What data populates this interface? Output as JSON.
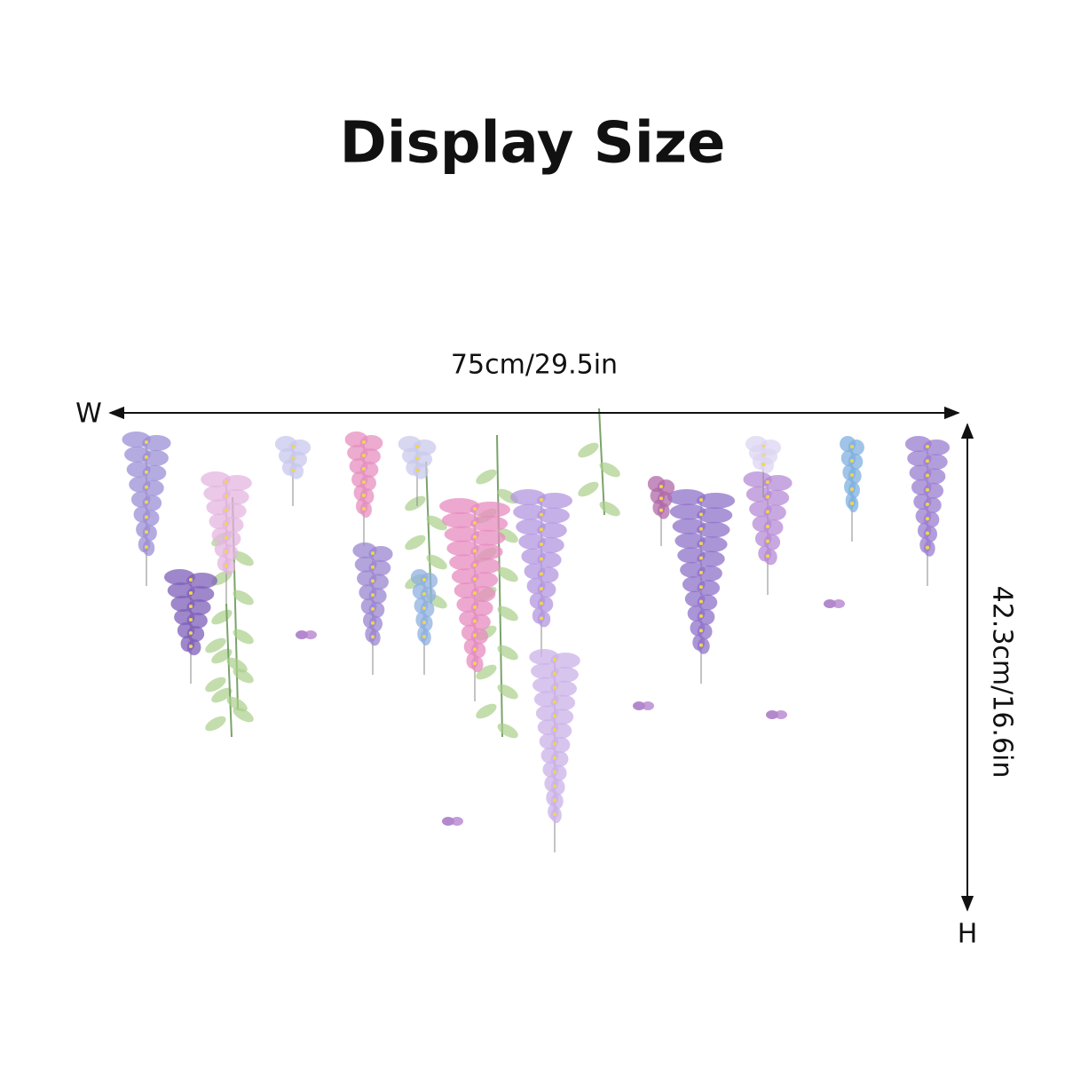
{
  "title": "Display Size",
  "width_label": "75cm/29.5in",
  "height_label": "42.3cm/16.6in",
  "width_marker": "W",
  "height_marker": "H"
}
